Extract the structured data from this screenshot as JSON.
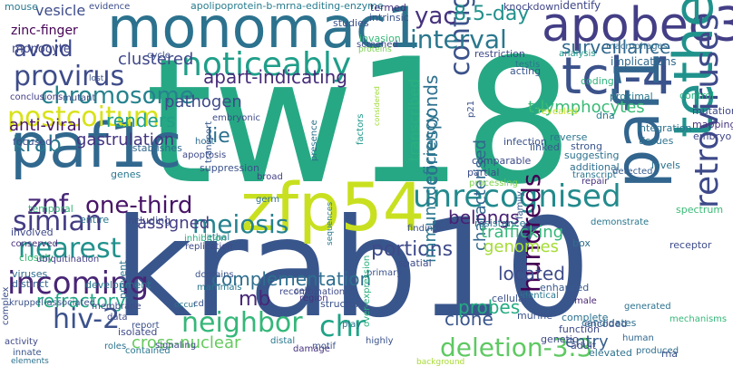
{
  "words": [
    {
      "text": "tw18",
      "color": "#27a884"
    },
    {
      "text": "krab10",
      "color": "#39568c"
    },
    {
      "text": "monomac1",
      "color": "#2c728e"
    },
    {
      "text": "apobec3",
      "color": "#433e85"
    },
    {
      "text": "paf1c",
      "color": "#31688e"
    },
    {
      "text": "zfp54",
      "color": "#c8e020"
    },
    {
      "text": "tcl-4",
      "color": "#3b528b"
    },
    {
      "text": "paf1",
      "color": "#32658e"
    },
    {
      "text": "tetherin",
      "color": "#20928c"
    },
    {
      "text": "retroviruses",
      "color": "#3e4a89"
    },
    {
      "text": "unrecognised",
      "color": "#238a8d"
    },
    {
      "text": "incoming",
      "color": "#482575"
    },
    {
      "text": "nearest",
      "color": "#21918c"
    },
    {
      "text": "noticeably",
      "color": "#1f9e89"
    },
    {
      "text": "provirus",
      "color": "#3e4c8a"
    },
    {
      "text": "postcoitum",
      "color": "#d8e219"
    },
    {
      "text": "simian",
      "color": "#433d84"
    },
    {
      "text": "neighbor",
      "color": "#35b779"
    },
    {
      "text": "meiosis",
      "color": "#26828e"
    },
    {
      "text": "deletion-3.3",
      "color": "#5ec962"
    },
    {
      "text": "hiv-2",
      "color": "#3b528b"
    },
    {
      "text": "contig",
      "color": "#3b528b"
    },
    {
      "text": "chromosome",
      "color": "#26828e"
    },
    {
      "text": "interval",
      "color": "#2a778e"
    },
    {
      "text": "znf",
      "color": "#482878"
    },
    {
      "text": "one-third",
      "color": "#481467"
    },
    {
      "text": "chr",
      "color": "#20a386"
    },
    {
      "text": "surveillance",
      "color": "#31688e"
    },
    {
      "text": "yac",
      "color": "#46327e"
    },
    {
      "text": "krab",
      "color": "#2a788e"
    },
    {
      "text": "8.5-day",
      "color": "#21918c"
    },
    {
      "text": "t-lymphocytes",
      "color": "#3aba76"
    },
    {
      "text": "avoid",
      "color": "#3e4989"
    },
    {
      "text": "hundreds",
      "color": "#440154"
    },
    {
      "text": "portions",
      "color": "#3e4a89"
    },
    {
      "text": "apart-indicating",
      "color": "#472c7a"
    },
    {
      "text": "refractory",
      "color": "#22a785"
    },
    {
      "text": "corresponds",
      "color": "#2d708e"
    },
    {
      "text": "complementation",
      "color": "#2e6e8e"
    },
    {
      "text": "lie",
      "color": "#2c728e"
    },
    {
      "text": "renders",
      "color": "#1fa088"
    },
    {
      "text": "clustered",
      "color": "#3f4889"
    },
    {
      "text": "anti-viral",
      "color": "#481769"
    },
    {
      "text": "gastrulation",
      "color": "#453581"
    },
    {
      "text": "pathogen",
      "color": "#3e4a89"
    },
    {
      "text": "characterised",
      "color": "#31678e"
    },
    {
      "text": "trafficking",
      "color": "#34b679"
    },
    {
      "text": "clone",
      "color": "#39568c"
    },
    {
      "text": "mb",
      "color": "#482878"
    },
    {
      "text": "immunodeficiency",
      "color": "#2a768e"
    },
    {
      "text": "belongs",
      "color": "#482173"
    },
    {
      "text": "located",
      "color": "#3e4c8a"
    },
    {
      "text": "assigned",
      "color": "#433e85"
    },
    {
      "text": "probes",
      "color": "#25ab82"
    },
    {
      "text": "genomes",
      "color": "#a5db36"
    },
    {
      "text": "cross-nuclear",
      "color": "#65cb5e"
    },
    {
      "text": "transcribed",
      "color": "#29af7f"
    },
    {
      "text": "entry",
      "color": "#365d8d"
    },
    {
      "text": "zinc-finger",
      "color": "#440154"
    },
    {
      "text": "vesicle",
      "color": "#3e4c8a"
    },
    {
      "text": "monocyte",
      "color": "#3f4788"
    },
    {
      "text": "mouse",
      "color": "#2a788e"
    },
    {
      "text": "evidence",
      "color": "#3d4e8a"
    },
    {
      "text": "apolipoprotein-b-mrna-editing-enzyme",
      "color": "#287c8e"
    },
    {
      "text": "termed",
      "color": "#46337e"
    },
    {
      "text": "knockdown",
      "color": "#404588"
    },
    {
      "text": "identify",
      "color": "#3f4788"
    },
    {
      "text": "intrinsic",
      "color": "#3b528b"
    },
    {
      "text": "invasion",
      "color": "#37b878"
    },
    {
      "text": "screened",
      "color": "#3e4a89"
    },
    {
      "text": "proteins",
      "color": "#7ad151"
    },
    {
      "text": "studies",
      "color": "#3b528b"
    },
    {
      "text": "restriction",
      "color": "#3e4989"
    },
    {
      "text": "testis",
      "color": "#2a768e"
    },
    {
      "text": "macrophages",
      "color": "#2e6e8e"
    },
    {
      "text": "implications",
      "color": "#31688e"
    },
    {
      "text": "analysis",
      "color": "#1f9a8a"
    },
    {
      "text": "cycle",
      "color": "#3b528b"
    },
    {
      "text": "conclusions",
      "color": "#433e85"
    },
    {
      "text": "mutant",
      "color": "#3d4d8a"
    },
    {
      "text": "focused",
      "color": "#3e4989"
    },
    {
      "text": "host",
      "color": "#2e6d8e"
    },
    {
      "text": "embryonic",
      "color": "#3e4c8a"
    },
    {
      "text": "apoptosis",
      "color": "#3e4a89"
    },
    {
      "text": "transport",
      "color": "#38598c"
    },
    {
      "text": "establishes",
      "color": "#31688e"
    },
    {
      "text": "genes",
      "color": "#2a778e"
    },
    {
      "text": "suppression",
      "color": "#3b528b"
    },
    {
      "text": "lethal",
      "color": "#2a788e"
    },
    {
      "text": "broad",
      "color": "#424086"
    },
    {
      "text": "germ",
      "color": "#2d708e"
    },
    {
      "text": "presence",
      "color": "#2c728e"
    },
    {
      "text": "factors",
      "color": "#1f988b"
    },
    {
      "text": "considered",
      "color": "#a0da39"
    },
    {
      "text": "p21",
      "color": "#3b528b"
    },
    {
      "text": "acting",
      "color": "#39568c"
    },
    {
      "text": "coding",
      "color": "#2fb47c"
    },
    {
      "text": "proximal",
      "color": "#2a788e"
    },
    {
      "text": "control",
      "color": "#2ab07f"
    },
    {
      "text": "mutation",
      "color": "#3f4788"
    },
    {
      "text": "revealed",
      "color": "#c2df23"
    },
    {
      "text": "dna",
      "color": "#287d8e"
    },
    {
      "text": "integration",
      "color": "#2c728e"
    },
    {
      "text": "tissues",
      "color": "#2c738e"
    },
    {
      "text": "mapping",
      "color": "#46327e"
    },
    {
      "text": "embryo",
      "color": "#404688"
    },
    {
      "text": "infection",
      "color": "#3b528b"
    },
    {
      "text": "linked",
      "color": "#38598c"
    },
    {
      "text": "reverse",
      "color": "#2a768e"
    },
    {
      "text": "strong",
      "color": "#3a548c"
    },
    {
      "text": "suggesting",
      "color": "#2c718e"
    },
    {
      "text": "comparable",
      "color": "#3e4a89"
    },
    {
      "text": "additional",
      "color": "#2e6f8e"
    },
    {
      "text": "transcript",
      "color": "#2a768e"
    },
    {
      "text": "levels",
      "color": "#2c728e"
    },
    {
      "text": "detected",
      "color": "#365c8d"
    },
    {
      "text": "partial",
      "color": "#3d4e8a"
    },
    {
      "text": "processing",
      "color": "#7fd34e"
    },
    {
      "text": "repair",
      "color": "#46307e"
    },
    {
      "text": "spectrum",
      "color": "#3aba76"
    },
    {
      "text": "temporal",
      "color": "#34b679"
    },
    {
      "text": "entire",
      "color": "#2a778e"
    },
    {
      "text": "including",
      "color": "#3e4c8a"
    },
    {
      "text": "involved",
      "color": "#3e4989"
    },
    {
      "text": "conserved",
      "color": "#472d7b"
    },
    {
      "text": "closely",
      "color": "#3aba76"
    },
    {
      "text": "ubiquitination",
      "color": "#433e85"
    },
    {
      "text": "inhibition",
      "color": "#29af7f"
    },
    {
      "text": "replication",
      "color": "#3e4a89"
    },
    {
      "text": "resistance",
      "color": "#2a778e"
    },
    {
      "text": "family",
      "color": "#39568c"
    },
    {
      "text": "box",
      "color": "#2e6e8e"
    },
    {
      "text": "demonstrate",
      "color": "#2a778e"
    },
    {
      "text": "receptor",
      "color": "#3e4c8a"
    },
    {
      "text": "findings",
      "color": "#3b528b"
    },
    {
      "text": "primary",
      "color": "#3b528b"
    },
    {
      "text": "spatial",
      "color": "#3e4c8a"
    },
    {
      "text": "viruses",
      "color": "#2f6c8e"
    },
    {
      "text": "distinct",
      "color": "#33638d"
    },
    {
      "text": "development",
      "color": "#2a778e"
    },
    {
      "text": "prevent",
      "color": "#2c738e"
    },
    {
      "text": "domains",
      "color": "#3b528b"
    },
    {
      "text": "mammals",
      "color": "#2a768e"
    },
    {
      "text": "sequences",
      "color": "#2a788e"
    },
    {
      "text": "cell",
      "color": "#3d4e8a"
    },
    {
      "text": "region",
      "color": "#46337e"
    },
    {
      "text": "enhanced",
      "color": "#38598c"
    },
    {
      "text": "male",
      "color": "#482475"
    },
    {
      "text": "mechanisms",
      "color": "#35b779"
    },
    {
      "text": "complex",
      "color": "#3d4e8a"
    },
    {
      "text": "kruppel-associated",
      "color": "#3b528b"
    },
    {
      "text": "membrane",
      "color": "#3e4c8a"
    },
    {
      "text": "data",
      "color": "#3e4989"
    },
    {
      "text": "occur",
      "color": "#2c728e"
    },
    {
      "text": "cdna",
      "color": "#3b528b"
    },
    {
      "text": "recombination",
      "color": "#3e4a89"
    },
    {
      "text": "structure",
      "color": "#3b528b"
    },
    {
      "text": "identical",
      "color": "#2a788e"
    },
    {
      "text": "murine",
      "color": "#3b528b"
    },
    {
      "text": "candidates",
      "color": "#2e6f8e"
    },
    {
      "text": "adult",
      "color": "#3e4a89"
    },
    {
      "text": "generated",
      "color": "#2c728e"
    },
    {
      "text": "produced",
      "color": "#2e6f8e"
    },
    {
      "text": "encoded",
      "color": "#3b528b"
    },
    {
      "text": "play",
      "color": "#2c728e"
    },
    {
      "text": "damage",
      "color": "#46327e"
    },
    {
      "text": "motif",
      "color": "#3b528b"
    },
    {
      "text": "distal",
      "color": "#2a788e"
    },
    {
      "text": "over-expression",
      "color": "#2ab07f"
    },
    {
      "text": "complete",
      "color": "#2c728e"
    },
    {
      "text": "function",
      "color": "#3e4a89"
    },
    {
      "text": "human",
      "color": "#31688e"
    },
    {
      "text": "rna",
      "color": "#3b528b"
    },
    {
      "text": "activity",
      "color": "#3e4989"
    },
    {
      "text": "isolated",
      "color": "#3e4a89"
    },
    {
      "text": "innate",
      "color": "#39568c"
    },
    {
      "text": "roles",
      "color": "#2c728e"
    },
    {
      "text": "report",
      "color": "#3b528b"
    },
    {
      "text": "signaling",
      "color": "#3e4a89"
    },
    {
      "text": "contained",
      "color": "#2a778e"
    },
    {
      "text": "elements",
      "color": "#2c728e"
    },
    {
      "text": "highly",
      "color": "#3b528b"
    },
    {
      "text": "background",
      "color": "#a8db34"
    },
    {
      "text": "cellular",
      "color": "#3b528b"
    },
    {
      "text": "genetic",
      "color": "#3e4a89"
    },
    {
      "text": "elevated",
      "color": "#2c728e"
    },
    {
      "text": "lost",
      "color": "#3b528b"
    }
  ]
}
